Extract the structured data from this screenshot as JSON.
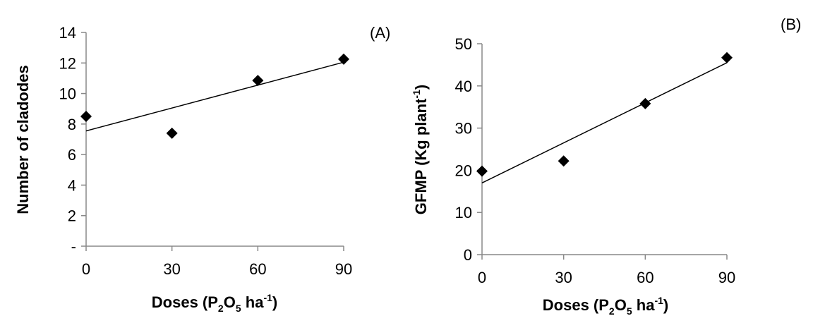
{
  "chart_data": [
    {
      "type": "scatter",
      "panel_label": "(A)",
      "x": [
        0,
        30,
        60,
        90
      ],
      "y": [
        8.5,
        7.4,
        10.85,
        12.25
      ],
      "trendline": {
        "x": [
          0,
          90
        ],
        "y": [
          7.55,
          12.05
        ]
      },
      "xticks": [
        "0",
        "30",
        "60",
        "90"
      ],
      "yticks": [
        "-",
        "2",
        "4",
        "6",
        "8",
        "10",
        "12",
        "14"
      ],
      "xlim": [
        0,
        90
      ],
      "ylim": [
        0,
        14
      ],
      "xlabel": {
        "pre": "Doses (P",
        "sub1": "2",
        "mid": "O",
        "sub2": "5",
        "post": " ha",
        "sup": "-1",
        "end": ")"
      },
      "ylabel": "Number of cladodes",
      "grid": false,
      "marker": "diamond",
      "marker_color": "#000000"
    },
    {
      "type": "scatter",
      "panel_label": "(B)",
      "x": [
        0,
        30,
        60,
        90
      ],
      "y": [
        19.8,
        22.2,
        35.8,
        46.7
      ],
      "trendline": {
        "x": [
          0,
          90
        ],
        "y": [
          17.0,
          45.5
        ]
      },
      "xticks": [
        "0",
        "30",
        "60",
        "90"
      ],
      "yticks": [
        "0",
        "10",
        "20",
        "30",
        "40",
        "50"
      ],
      "xlim": [
        0,
        90
      ],
      "ylim": [
        0,
        50
      ],
      "xlabel": {
        "pre": "Doses (P",
        "sub1": "2",
        "mid": "O",
        "sub2": "5",
        "post": " ha",
        "sup": "-1",
        "end": ")"
      },
      "ylabel": {
        "pre": "GFMP (Kg plant",
        "sup": "-1",
        "end": ")"
      },
      "grid": false,
      "marker": "diamond",
      "marker_color": "#000000"
    }
  ]
}
